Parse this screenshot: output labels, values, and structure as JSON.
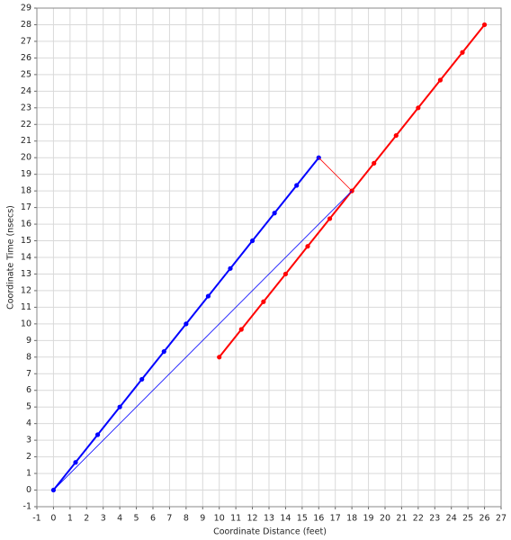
{
  "chart_data": {
    "type": "line",
    "x_label": "Coordinate Distance (feet)",
    "y_label": "Coordinate Time (nsecs)",
    "xlim": [
      -1,
      27
    ],
    "ylim": [
      -1,
      29
    ],
    "xticks": [
      -1,
      0,
      1,
      2,
      3,
      4,
      5,
      6,
      7,
      8,
      9,
      10,
      11,
      12,
      13,
      14,
      15,
      16,
      17,
      18,
      19,
      20,
      21,
      22,
      23,
      24,
      25,
      26,
      27
    ],
    "yticks": [
      -1,
      0,
      1,
      2,
      3,
      4,
      5,
      6,
      7,
      8,
      9,
      10,
      11,
      12,
      13,
      14,
      15,
      16,
      17,
      18,
      19,
      20,
      21,
      22,
      23,
      24,
      25,
      26,
      27,
      28,
      29
    ],
    "grid": true,
    "series": [
      {
        "color": "#0000ff",
        "markers": true,
        "width": 2,
        "x": [
          0,
          1.333,
          2.667,
          4,
          5.333,
          6.667,
          8,
          9.333,
          10.667,
          12,
          13.333,
          14.667,
          16
        ],
        "values": [
          0,
          1.667,
          3.333,
          5,
          6.667,
          8.333,
          10,
          11.667,
          13.333,
          15,
          16.667,
          18.333,
          20
        ]
      },
      {
        "color": "#ff0000",
        "markers": true,
        "width": 2,
        "x": [
          10,
          11.333,
          12.667,
          14,
          15.333,
          16.667,
          18,
          19.333,
          20.667,
          22,
          23.333,
          24.667,
          26
        ],
        "values": [
          8,
          9.667,
          11.333,
          13,
          14.667,
          16.333,
          18,
          19.667,
          21.333,
          23,
          24.667,
          26.333,
          28
        ]
      },
      {
        "color": "#0000ff",
        "markers": false,
        "width": 0.8,
        "x": [
          0,
          18
        ],
        "values": [
          0,
          18
        ]
      },
      {
        "color": "#ff0000",
        "markers": false,
        "width": 0.8,
        "x": [
          16,
          18
        ],
        "values": [
          20,
          18
        ]
      }
    ]
  }
}
